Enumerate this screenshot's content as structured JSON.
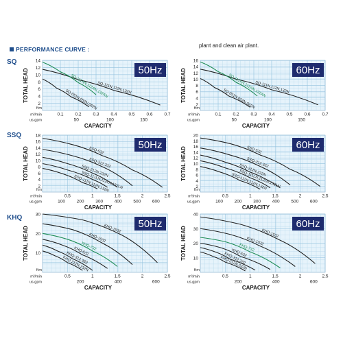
{
  "header": {
    "title": "PERFORMANCE CURVE :",
    "note": "plant and clean air plant."
  },
  "rows": [
    {
      "label": "SQ",
      "top": 85
    },
    {
      "label": "SSQ",
      "top": 192
    },
    {
      "label": "KHQ",
      "top": 312
    }
  ],
  "chart_data": [
    {
      "type": "line",
      "row": "SQ",
      "freq": "50Hz",
      "ylabel": "TOTAL HEAD",
      "xlabel": "CAPACITY",
      "y_unit": "m",
      "y_unit_alt": "ft",
      "x_unit": "m³/min",
      "x_unit_alt": "us.gpm",
      "ylim": [
        0,
        14
      ],
      "y_ticks": [
        2,
        4,
        6,
        8,
        10,
        12,
        14
      ],
      "xlim": [
        0,
        0.7
      ],
      "x_ticks": [
        0.1,
        0.2,
        0.3,
        0.4,
        0.5,
        0.6,
        0.7
      ],
      "x_tick_labels": [
        "0.1",
        "0.2",
        "0.3",
        "0.4",
        "0.5",
        "0.6",
        "0.7"
      ],
      "x_alt_ticks": [
        50,
        100,
        150
      ],
      "x_alt_tick_labels": [
        "50",
        "100",
        "150"
      ],
      "x_alt_factor": 264.17,
      "series": [
        {
          "name": "SQ-111N,112N,132N",
          "color": "#222222",
          "x": [
            0,
            0.2,
            0.4,
            0.66
          ],
          "y": [
            11.5,
            8.6,
            5.6,
            1.5
          ]
        },
        {
          "name": "SQ-111AN,112AN,132AN",
          "color": "#1e8c55",
          "x": [
            0,
            0.1,
            0.2,
            0.3
          ],
          "y": [
            13.5,
            10.8,
            7.8,
            4.4
          ]
        },
        {
          "name": "SQ-051N,052N,062N",
          "color": "#222222",
          "x": [
            0,
            0.08,
            0.16,
            0.26
          ],
          "y": [
            8.8,
            6.2,
            3.8,
            1.0
          ]
        }
      ]
    },
    {
      "type": "line",
      "row": "SQ",
      "freq": "60Hz",
      "ylabel": "TOTAL HEAD",
      "xlabel": "CAPACITY",
      "y_unit": "m",
      "y_unit_alt": "ft",
      "x_unit": "m³/min",
      "x_unit_alt": "us.gpm",
      "ylim": [
        0,
        16
      ],
      "y_ticks": [
        2,
        4,
        6,
        8,
        10,
        12,
        14,
        16
      ],
      "xlim": [
        0,
        0.7
      ],
      "x_ticks": [
        0.1,
        0.2,
        0.3,
        0.4,
        0.5,
        0.6,
        0.7
      ],
      "x_tick_labels": [
        "0.1",
        "0.2",
        "0.3",
        "0.4",
        "0.5",
        "0.6",
        "0.7"
      ],
      "x_alt_ticks": [
        50,
        100,
        150
      ],
      "x_alt_tick_labels": [
        "50",
        "100",
        "150"
      ],
      "x_alt_factor": 264.17,
      "series": [
        {
          "name": "SQ-111N,112N,132N",
          "color": "#222222",
          "x": [
            0,
            0.2,
            0.4,
            0.66
          ],
          "y": [
            13.2,
            10.0,
            6.6,
            1.8
          ]
        },
        {
          "name": "SQ-111AN,112AN,132AN",
          "color": "#1e8c55",
          "x": [
            0,
            0.1,
            0.2,
            0.32
          ],
          "y": [
            15.5,
            12.4,
            9.0,
            4.6
          ]
        },
        {
          "name": "SQ-051N,052N,062N",
          "color": "#222222",
          "x": [
            0,
            0.08,
            0.16,
            0.28
          ],
          "y": [
            10.2,
            7.3,
            4.6,
            1.0
          ]
        }
      ]
    },
    {
      "type": "line",
      "row": "SSQ",
      "freq": "50Hz",
      "ylabel": "TOTAL HEAD",
      "xlabel": "CAPACITY",
      "y_unit": "m",
      "y_unit_alt": "ft",
      "x_unit": "m³/min",
      "x_unit_alt": "us.gpm",
      "ylim": [
        0,
        18
      ],
      "y_ticks": [
        2,
        4,
        6,
        8,
        10,
        12,
        14,
        16,
        18
      ],
      "xlim": [
        0,
        2.5
      ],
      "x_ticks": [
        0.5,
        1.0,
        1.5,
        2.0,
        2.5
      ],
      "x_tick_labels": [
        "0.5",
        "1",
        "1.5",
        "2",
        "2.5"
      ],
      "x_alt_ticks": [
        100,
        200,
        300,
        400,
        500,
        600
      ],
      "x_alt_tick_labels": [
        "100",
        "200",
        "300",
        "400",
        "500",
        "600"
      ],
      "x_alt_factor": 264.17,
      "series": [
        {
          "name": "SSQ-532",
          "color": "#222222",
          "x": [
            0,
            0.6,
            1.2,
            1.8,
            2.4
          ],
          "y": [
            17.0,
            15.0,
            11.5,
            7.0,
            1.5
          ]
        },
        {
          "name": "SSQ-312,332",
          "color": "#222222",
          "x": [
            0,
            0.6,
            1.2,
            1.8
          ],
          "y": [
            13.5,
            11.5,
            8.0,
            2.0
          ]
        },
        {
          "name": "SSQ-212N,232N",
          "color": "#222222",
          "x": [
            0,
            0.5,
            1.0,
            1.5
          ],
          "y": [
            11.0,
            9.0,
            6.0,
            1.5
          ]
        },
        {
          "name": "SSQ-111LN,112LN,132LN",
          "color": "#222222",
          "x": [
            0,
            0.5,
            1.0,
            1.3
          ],
          "y": [
            9.0,
            7.0,
            4.0,
            1.5
          ]
        },
        {
          "name": "SSQ-111N,112N,132N",
          "color": "#222222",
          "x": [
            0,
            0.4,
            0.8,
            1.1
          ],
          "y": [
            7.5,
            5.8,
            3.0,
            1.0
          ]
        }
      ]
    },
    {
      "type": "line",
      "row": "SSQ",
      "freq": "60Hz",
      "ylabel": "TOTAL HEAD",
      "xlabel": "CAPACITY",
      "y_unit": "m",
      "y_unit_alt": "ft",
      "x_unit": "m³/min",
      "x_unit_alt": "us.gpm",
      "ylim": [
        0,
        20
      ],
      "y_ticks": [
        2,
        4,
        6,
        8,
        10,
        12,
        14,
        16,
        18,
        20
      ],
      "xlim": [
        0,
        2.5
      ],
      "x_ticks": [
        0.5,
        1.0,
        1.5,
        2.0,
        2.5
      ],
      "x_tick_labels": [
        "0.5",
        "1",
        "1.5",
        "2",
        "2.5"
      ],
      "x_alt_ticks": [
        100,
        200,
        300,
        400,
        500,
        600
      ],
      "x_alt_tick_labels": [
        "100",
        "200",
        "300",
        "400",
        "500",
        "600"
      ],
      "x_alt_factor": 264.17,
      "series": [
        {
          "name": "SSQ-532",
          "color": "#222222",
          "x": [
            0,
            0.6,
            1.2,
            1.8,
            2.4
          ],
          "y": [
            19.0,
            17.0,
            13.0,
            8.0,
            2.0
          ]
        },
        {
          "name": "SSQ-312,332",
          "color": "#222222",
          "x": [
            0,
            0.6,
            1.2,
            1.8
          ],
          "y": [
            15.5,
            13.0,
            9.0,
            2.5
          ]
        },
        {
          "name": "SSQ-212N,232N",
          "color": "#222222",
          "x": [
            0,
            0.5,
            1.0,
            1.6
          ],
          "y": [
            13.0,
            10.5,
            7.0,
            1.5
          ]
        },
        {
          "name": "SSQ-111LN,112LN,132LN",
          "color": "#222222",
          "x": [
            0,
            0.5,
            1.0,
            1.4
          ],
          "y": [
            11.0,
            8.5,
            5.0,
            1.5
          ]
        },
        {
          "name": "SSQ-111N,112N,132N",
          "color": "#222222",
          "x": [
            0,
            0.4,
            0.8,
            1.2
          ],
          "y": [
            9.0,
            7.0,
            4.0,
            1.0
          ]
        }
      ]
    },
    {
      "type": "line",
      "row": "KHQ",
      "freq": "50Hz",
      "ylabel": "TOTAL HEAD",
      "xlabel": "CAPACITY",
      "y_unit": "m",
      "y_unit_alt": "ft",
      "x_unit": "m³/min",
      "x_unit_alt": "us.gpm",
      "ylim": [
        0,
        30
      ],
      "y_ticks": [
        5,
        10,
        15,
        20,
        25,
        30
      ],
      "y_tick_labels": [
        "",
        "10",
        "",
        "20",
        "",
        "30"
      ],
      "xlim": [
        0,
        2.5
      ],
      "x_ticks": [
        0.5,
        1.0,
        1.5,
        2.0,
        2.5
      ],
      "x_tick_labels": [
        "0.5",
        "1",
        "1.5",
        "2",
        "2.5"
      ],
      "x_alt_ticks": [
        200,
        400,
        600
      ],
      "x_alt_tick_labels": [
        "200",
        "400",
        "600"
      ],
      "x_alt_factor": 264.17,
      "series": [
        {
          "name": "KHQ-1532",
          "color": "#222222",
          "x": [
            0,
            0.8,
            1.6,
            2.3
          ],
          "y": [
            30,
            27,
            19,
            5
          ]
        },
        {
          "name": "KHQ-1032",
          "color": "#222222",
          "x": [
            0,
            0.6,
            1.2,
            1.8
          ],
          "y": [
            25,
            22,
            15,
            4
          ]
        },
        {
          "name": "KHQ-732",
          "color": "#1e8c55",
          "x": [
            0,
            0.5,
            1.0,
            1.5
          ],
          "y": [
            20,
            17,
            11,
            3
          ]
        },
        {
          "name": "KHQ-532",
          "color": "#222222",
          "x": [
            0,
            0.4,
            0.8,
            1.3
          ],
          "y": [
            17,
            14,
            9,
            2
          ]
        },
        {
          "name": "KHQ-312,332",
          "color": "#222222",
          "x": [
            0,
            0.3,
            0.6,
            1.0
          ],
          "y": [
            14,
            11,
            7,
            1
          ]
        },
        {
          "name": "KHQ-212N,232N",
          "color": "#222222",
          "x": [
            0,
            0.25,
            0.5,
            0.8
          ],
          "y": [
            11,
            8.5,
            5,
            1
          ]
        }
      ]
    },
    {
      "type": "line",
      "row": "KHQ",
      "freq": "60Hz",
      "ylabel": "TOTAL HEAD",
      "xlabel": "CAPACITY",
      "y_unit": "m",
      "y_unit_alt": "ft",
      "x_unit": "m³/min",
      "x_unit_alt": "us.gpm",
      "ylim": [
        0,
        40
      ],
      "y_ticks": [
        10,
        20,
        30,
        40
      ],
      "xlim": [
        0,
        2.5
      ],
      "x_ticks": [
        0.5,
        1.0,
        1.5,
        2.0,
        2.5
      ],
      "x_tick_labels": [
        "0.5",
        "1",
        "1.5",
        "2",
        "2.5"
      ],
      "x_alt_ticks": [
        200,
        400,
        600
      ],
      "x_alt_tick_labels": [
        "200",
        "400",
        "600"
      ],
      "x_alt_factor": 264.17,
      "series": [
        {
          "name": "KHQ-1532",
          "color": "#222222",
          "x": [
            0,
            0.8,
            1.6,
            2.3
          ],
          "y": [
            38,
            33,
            22,
            6
          ]
        },
        {
          "name": "KHQ-1032",
          "color": "#222222",
          "x": [
            0,
            0.6,
            1.2,
            1.9
          ],
          "y": [
            30,
            26,
            18,
            4
          ]
        },
        {
          "name": "KHQ-732",
          "color": "#1e8c55",
          "x": [
            0,
            0.5,
            1.0,
            1.6
          ],
          "y": [
            24,
            21,
            14,
            3
          ]
        },
        {
          "name": "KHQ-532",
          "color": "#222222",
          "x": [
            0,
            0.4,
            0.8,
            1.4
          ],
          "y": [
            20,
            17,
            11,
            2
          ]
        },
        {
          "name": "KHQ-312,332",
          "color": "#222222",
          "x": [
            0,
            0.3,
            0.6,
            1.1
          ],
          "y": [
            17,
            14,
            9,
            1.5
          ]
        },
        {
          "name": "KHQ-212N,232N",
          "color": "#222222",
          "x": [
            0,
            0.25,
            0.5,
            0.9
          ],
          "y": [
            14,
            11,
            7,
            1
          ]
        }
      ]
    }
  ]
}
